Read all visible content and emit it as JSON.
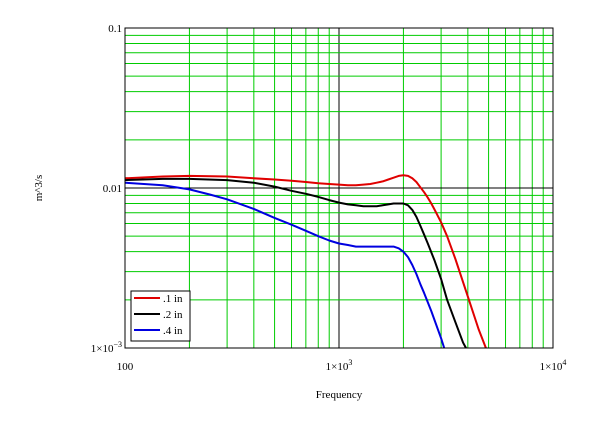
{
  "chart_data": {
    "type": "line",
    "title": "",
    "xlabel": "Frequency",
    "ylabel": "m^3/s",
    "xscale": "log",
    "yscale": "log",
    "xlim": [
      100,
      10000
    ],
    "ylim": [
      0.001,
      0.1
    ],
    "grid": true,
    "legend_position": "bottom-left",
    "colors": {
      "grid": "#00cc00",
      "frame": "#000000"
    },
    "x_ticks": [
      {
        "value": 100,
        "label": "100"
      },
      {
        "value": 1000,
        "label": "1×10",
        "exp": "3"
      },
      {
        "value": 10000,
        "label": "1×10",
        "exp": "4"
      }
    ],
    "y_ticks": [
      {
        "value": 0.1,
        "label": "0.1"
      },
      {
        "value": 0.01,
        "label": "0.01"
      },
      {
        "value": 0.001,
        "label": "1×10",
        "exp": "−3"
      }
    ],
    "series": [
      {
        "name": ".1 in",
        "color": "#e00000",
        "x": [
          100,
          150,
          200,
          300,
          400,
          500,
          600,
          700,
          800,
          900,
          1000,
          1100,
          1200,
          1300,
          1400,
          1500,
          1600,
          1700,
          1800,
          1900,
          2000,
          2100,
          2200,
          2300,
          2400,
          2500,
          2600,
          2700,
          2800,
          3000,
          3200,
          3500,
          4000,
          4500,
          4860
        ],
        "y": [
          0.0115,
          0.0118,
          0.0119,
          0.0118,
          0.0115,
          0.0113,
          0.0111,
          0.0109,
          0.0107,
          0.0106,
          0.0105,
          0.0104,
          0.0104,
          0.0105,
          0.0106,
          0.0108,
          0.011,
          0.0113,
          0.0116,
          0.0119,
          0.012,
          0.0119,
          0.0115,
          0.0109,
          0.0101,
          0.0094,
          0.0087,
          0.008,
          0.0073,
          0.0061,
          0.005,
          0.0036,
          0.0021,
          0.0013,
          0.001
        ]
      },
      {
        "name": ".2 in",
        "color": "#000000",
        "x": [
          100,
          150,
          200,
          300,
          400,
          500,
          600,
          700,
          800,
          900,
          1000,
          1100,
          1200,
          1300,
          1400,
          1500,
          1600,
          1700,
          1800,
          1900,
          2000,
          2100,
          2200,
          2300,
          2400,
          2500,
          2600,
          2800,
          3000,
          3200,
          3500,
          3800,
          3920
        ],
        "y": [
          0.0112,
          0.0114,
          0.0114,
          0.0112,
          0.0108,
          0.0102,
          0.0096,
          0.0092,
          0.0088,
          0.0084,
          0.0081,
          0.0079,
          0.0078,
          0.0077,
          0.0077,
          0.0077,
          0.0078,
          0.0079,
          0.008,
          0.008,
          0.008,
          0.0078,
          0.0073,
          0.0066,
          0.0058,
          0.0051,
          0.0045,
          0.0035,
          0.0027,
          0.002,
          0.00145,
          0.00108,
          0.001
        ]
      },
      {
        "name": ".4 in",
        "color": "#0000e0",
        "x": [
          100,
          150,
          200,
          250,
          300,
          400,
          500,
          600,
          700,
          800,
          900,
          1000,
          1100,
          1200,
          1300,
          1400,
          1500,
          1600,
          1700,
          1800,
          1900,
          2000,
          2100,
          2200,
          2300,
          2400,
          2500,
          2700,
          3000,
          3100
        ],
        "y": [
          0.0108,
          0.0104,
          0.0098,
          0.0091,
          0.0085,
          0.0074,
          0.0065,
          0.0059,
          0.0054,
          0.005,
          0.0047,
          0.0045,
          0.0044,
          0.0043,
          0.0043,
          0.0043,
          0.0043,
          0.0043,
          0.0043,
          0.0043,
          0.0042,
          0.004,
          0.0037,
          0.0033,
          0.0029,
          0.0025,
          0.0022,
          0.0017,
          0.00115,
          0.001
        ]
      }
    ]
  }
}
